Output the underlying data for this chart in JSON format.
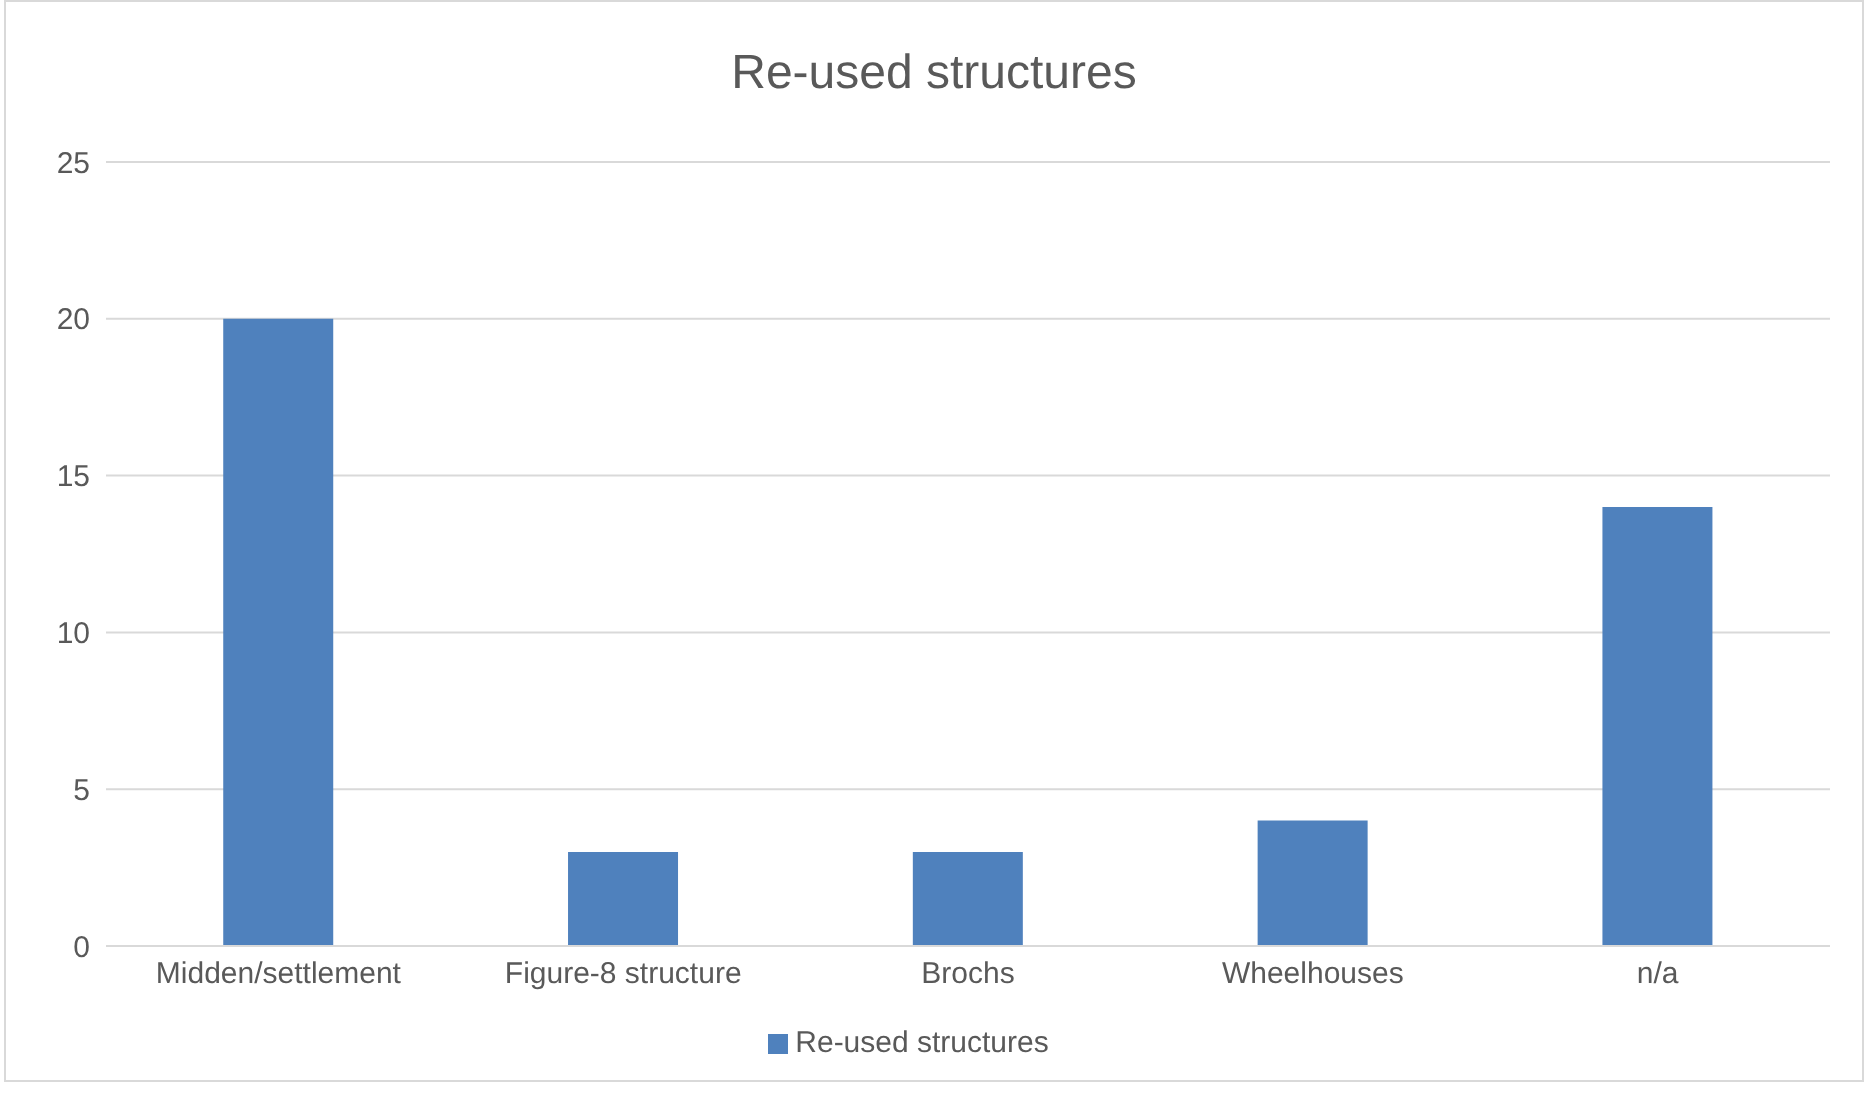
{
  "chart_data": {
    "type": "bar",
    "title": "Re-used structures",
    "categories": [
      "Midden/settlement",
      "Figure-8 structure",
      "Brochs",
      "Wheelhouses",
      "n/a"
    ],
    "series": [
      {
        "name": "Re-used structures",
        "color": "#4f81bd",
        "values": [
          20,
          3,
          3,
          4,
          14
        ]
      }
    ],
    "ylim": [
      0,
      25
    ],
    "yticks": [
      0,
      5,
      10,
      15,
      20,
      25
    ],
    "grid": "y",
    "legend": "bottom"
  }
}
